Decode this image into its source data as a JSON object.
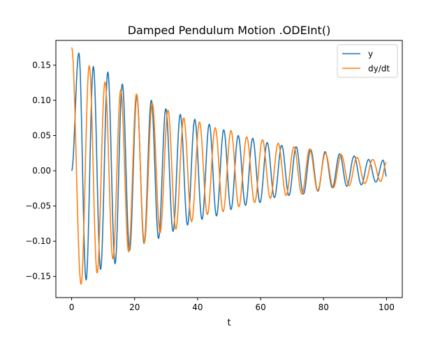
{
  "chart_data": {
    "type": "line",
    "title": "Damped Pendulum Motion .ODEInt()",
    "xlabel": "t",
    "ylabel": "",
    "xlim": [
      -5,
      105
    ],
    "ylim": [
      -0.18,
      0.185
    ],
    "x_ticks": [
      0,
      20,
      40,
      60,
      80,
      100
    ],
    "x_tick_labels": [
      "0",
      "20",
      "40",
      "60",
      "80",
      "100"
    ],
    "y_ticks": [
      -0.15,
      -0.1,
      -0.05,
      0.0,
      0.05,
      0.1,
      0.15
    ],
    "y_tick_labels": [
      "−0.15",
      "−0.10",
      "−0.05",
      "0.00",
      "0.05",
      "0.10",
      "0.15"
    ],
    "grid": false,
    "legend_position": "top-right",
    "x_range": [
      0,
      100
    ],
    "series": [
      {
        "name": "y",
        "color": "#1f77b4",
        "points": [
          [
            0,
            0.0
          ],
          [
            2.3,
            0.167
          ],
          [
            4.6,
            -0.155
          ],
          [
            6.9,
            0.148
          ],
          [
            9.2,
            -0.14
          ],
          [
            11.5,
            0.14
          ],
          [
            13.8,
            -0.132
          ],
          [
            16.1,
            0.123
          ],
          [
            18.4,
            -0.113
          ],
          [
            20.7,
            0.107
          ],
          [
            23.0,
            -0.103
          ],
          [
            25.3,
            0.1
          ],
          [
            27.6,
            -0.096
          ],
          [
            29.9,
            0.088
          ],
          [
            32.2,
            -0.086
          ],
          [
            34.5,
            0.08
          ],
          [
            36.8,
            -0.077
          ],
          [
            39.1,
            0.073
          ],
          [
            41.4,
            -0.069
          ],
          [
            43.7,
            0.066
          ],
          [
            46.0,
            -0.064
          ],
          [
            48.3,
            0.058
          ],
          [
            50.6,
            -0.055
          ],
          [
            52.9,
            0.05
          ],
          [
            55.2,
            -0.049
          ],
          [
            57.5,
            0.046
          ],
          [
            59.8,
            -0.045
          ],
          [
            62.1,
            0.04
          ],
          [
            64.4,
            -0.038
          ],
          [
            66.7,
            0.036
          ],
          [
            69.0,
            -0.035
          ],
          [
            71.3,
            0.034
          ],
          [
            73.6,
            -0.033
          ],
          [
            75.9,
            0.03
          ],
          [
            78.2,
            -0.029
          ],
          [
            80.5,
            0.027
          ],
          [
            82.8,
            -0.024
          ],
          [
            85.1,
            0.024
          ],
          [
            87.4,
            -0.022
          ],
          [
            89.7,
            0.021
          ],
          [
            92.0,
            -0.02
          ],
          [
            94.3,
            0.016
          ],
          [
            96.6,
            -0.016
          ],
          [
            98.9,
            0.015
          ],
          [
            100,
            -0.008
          ]
        ]
      },
      {
        "name": "dy/dt",
        "color": "#ff7f0e",
        "points": [
          [
            0,
            0.175
          ],
          [
            3.0,
            -0.161
          ],
          [
            5.6,
            0.149
          ],
          [
            8.1,
            -0.145
          ],
          [
            10.6,
            0.126
          ],
          [
            13.1,
            -0.125
          ],
          [
            15.6,
            0.115
          ],
          [
            18.1,
            -0.115
          ],
          [
            20.6,
            0.109
          ],
          [
            23.1,
            -0.102
          ],
          [
            25.6,
            0.096
          ],
          [
            28.1,
            -0.088
          ],
          [
            30.6,
            0.086
          ],
          [
            33.1,
            -0.083
          ],
          [
            35.6,
            0.075
          ],
          [
            38.1,
            -0.072
          ],
          [
            40.6,
            0.069
          ],
          [
            43.1,
            -0.062
          ],
          [
            45.6,
            0.061
          ],
          [
            48.1,
            -0.058
          ],
          [
            50.6,
            0.057
          ],
          [
            53.1,
            -0.051
          ],
          [
            55.6,
            0.048
          ],
          [
            58.1,
            -0.045
          ],
          [
            60.6,
            0.044
          ],
          [
            63.1,
            -0.039
          ],
          [
            65.6,
            0.039
          ],
          [
            68.1,
            -0.035
          ],
          [
            70.6,
            0.034
          ],
          [
            73.1,
            -0.033
          ],
          [
            75.6,
            0.031
          ],
          [
            78.1,
            -0.028
          ],
          [
            80.6,
            0.025
          ],
          [
            83.1,
            -0.024
          ],
          [
            85.6,
            0.023
          ],
          [
            88.1,
            -0.021
          ],
          [
            90.6,
            0.019
          ],
          [
            93.1,
            -0.018
          ],
          [
            95.6,
            0.016
          ],
          [
            98.1,
            -0.015
          ],
          [
            100,
            0.012
          ]
        ]
      }
    ]
  }
}
